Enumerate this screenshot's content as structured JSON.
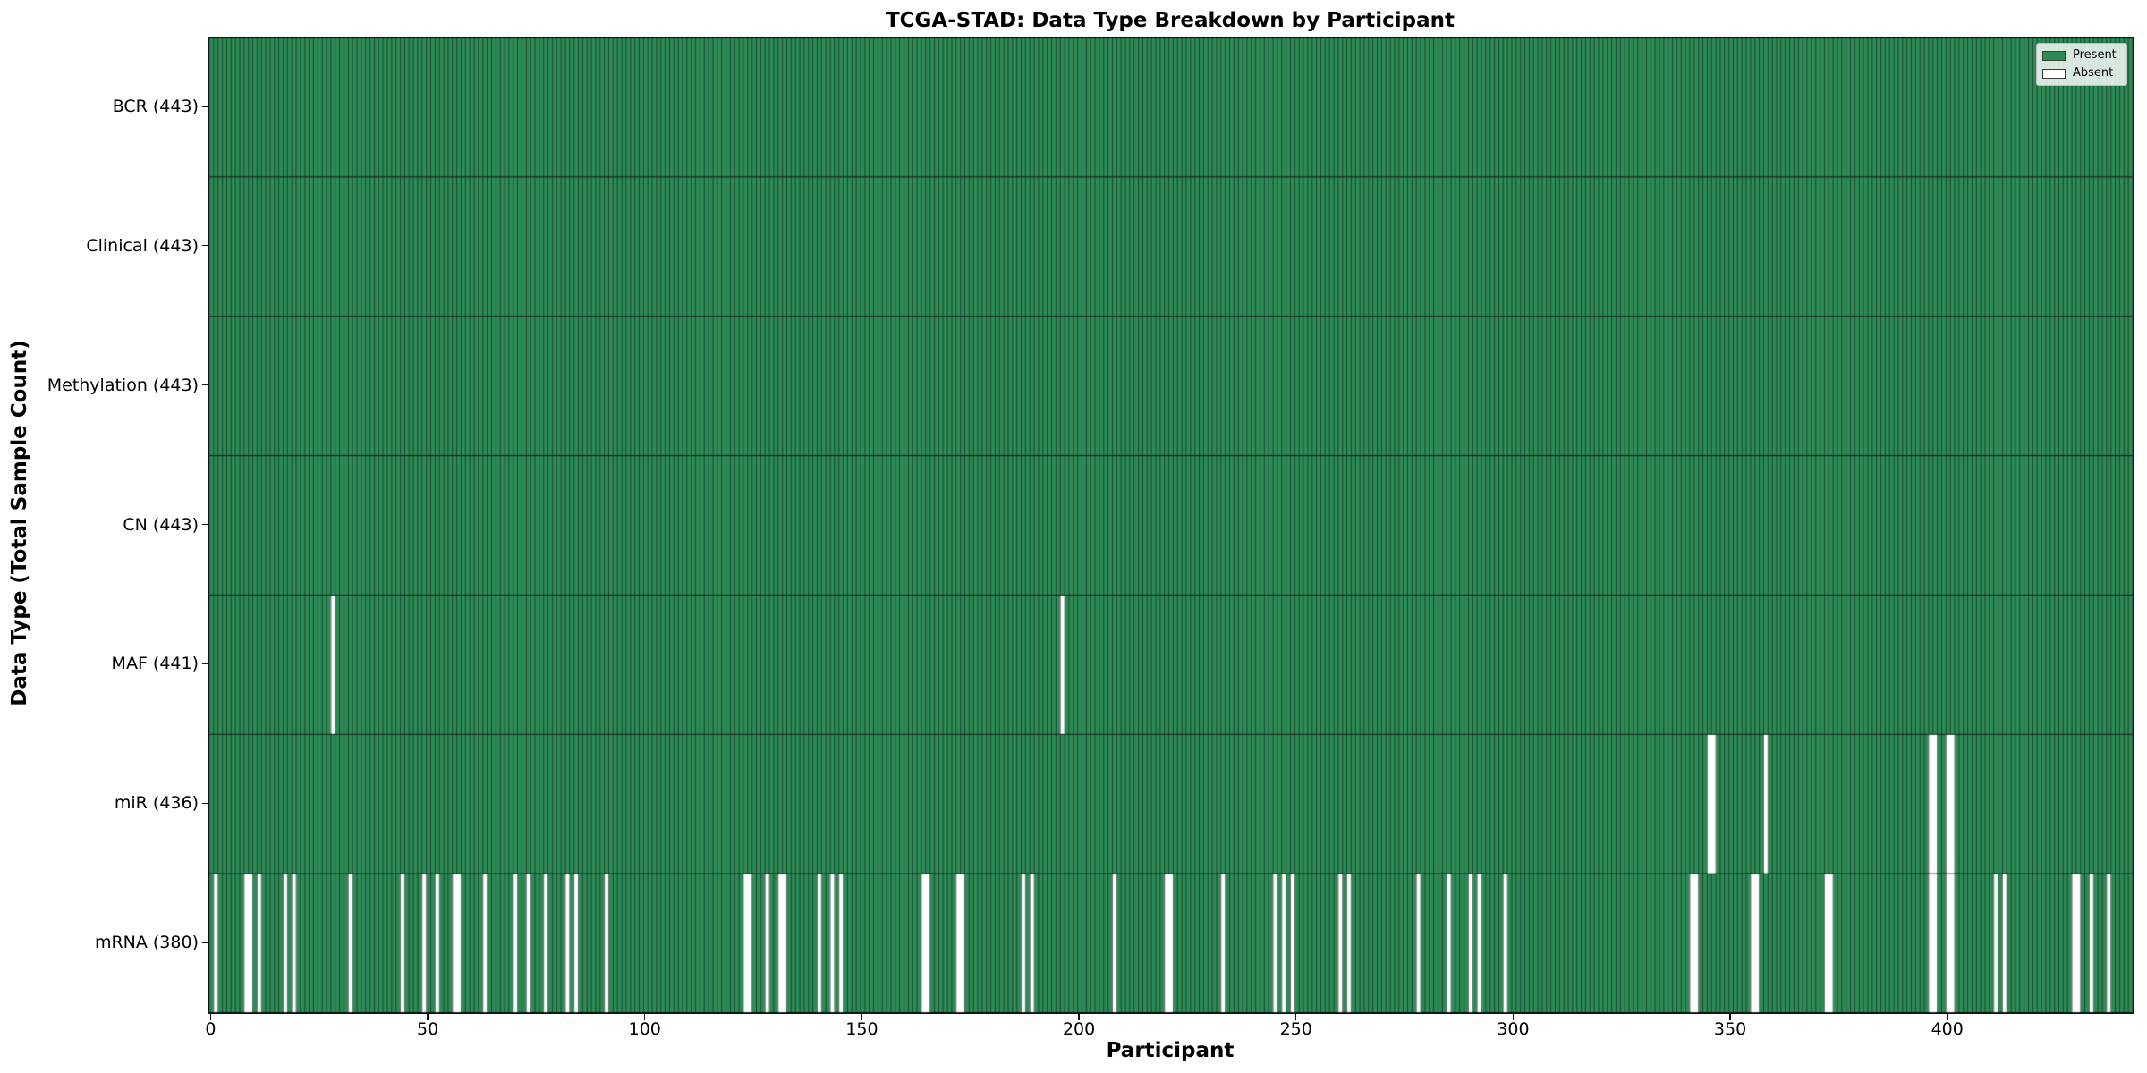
{
  "chart_data": {
    "type": "heatmap",
    "title": "TCGA-STAD: Data Type Breakdown by Participant",
    "xlabel": "Participant",
    "ylabel": "Data Type (Total Sample Count)",
    "x_ticks": [
      0,
      50,
      100,
      150,
      200,
      250,
      300,
      350,
      400
    ],
    "x_range": [
      0,
      443
    ],
    "n_participants": 443,
    "present_color": "#2e8b57",
    "absent_color": "#ffffff",
    "edge_stripe_color": "rgba(10,30,20,0.7)",
    "grid": "row-boundaries",
    "legend_position": "upper right",
    "legend": [
      {
        "label": "Present",
        "color": "#2e8b57"
      },
      {
        "label": "Absent",
        "color": "#ffffff"
      }
    ],
    "rows": [
      {
        "label": "BCR (443)",
        "data_type": "BCR",
        "total": 443,
        "absent": []
      },
      {
        "label": "Clinical (443)",
        "data_type": "Clinical",
        "total": 443,
        "absent": []
      },
      {
        "label": "Methylation (443)",
        "data_type": "Methylation",
        "total": 443,
        "absent": []
      },
      {
        "label": "CN (443)",
        "data_type": "CN",
        "total": 443,
        "absent": []
      },
      {
        "label": "MAF (441)",
        "data_type": "MAF",
        "total": 441,
        "absent": [
          28,
          196
        ]
      },
      {
        "label": "miR (436)",
        "data_type": "miR",
        "total": 436,
        "absent": [
          345,
          346,
          358,
          396,
          397,
          400,
          401
        ]
      },
      {
        "label": "mRNA (380)",
        "data_type": "mRNA",
        "total": 380,
        "absent": [
          1,
          8,
          9,
          11,
          17,
          19,
          32,
          44,
          49,
          52,
          56,
          57,
          63,
          70,
          73,
          77,
          82,
          84,
          91,
          123,
          124,
          128,
          131,
          132,
          140,
          143,
          145,
          164,
          165,
          172,
          173,
          187,
          189,
          208,
          220,
          221,
          233,
          245,
          247,
          249,
          260,
          262,
          278,
          285,
          290,
          292,
          298,
          341,
          342,
          355,
          356,
          372,
          373,
          396,
          397,
          400,
          401,
          411,
          413,
          429,
          430,
          433,
          437
        ]
      }
    ]
  }
}
